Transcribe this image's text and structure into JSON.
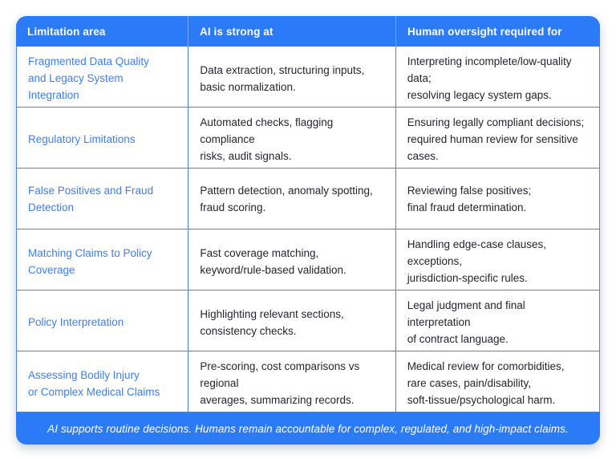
{
  "chart_data": {
    "type": "table",
    "title": "",
    "columns": [
      "Limitation area",
      "AI is strong at",
      "Human oversight required for"
    ],
    "rows": [
      [
        "Fragmented Data Quality\nand Legacy System Integration",
        "Data extraction, structuring inputs,\nbasic normalization.",
        "Interpreting incomplete/low-quality data;\nresolving legacy system gaps."
      ],
      [
        "Regulatory Limitations",
        "Automated checks, flagging compliance\nrisks, audit signals.",
        "Ensuring legally compliant decisions;\nrequired human review for sensitive cases."
      ],
      [
        "False Positives and Fraud\nDetection",
        "Pattern detection, anomaly spotting,\nfraud scoring.",
        "Reviewing false positives;\nfinal fraud determination."
      ],
      [
        "Matching Claims to Policy\nCoverage",
        "Fast coverage matching,\nkeyword/rule-based validation.",
        "Handling edge-case clauses, exceptions,\njurisdiction-specific rules."
      ],
      [
        "Policy Interpretation",
        "Highlighting relevant sections,\nconsistency checks.",
        "Legal judgment and final interpretation\nof contract language."
      ],
      [
        "Assessing Bodily Injury\nor Complex Medical Claims",
        "Pre-scoring, cost comparisons vs regional\naverages, summarizing records.",
        "Medical review for comorbidities,\nrare cases, pain/disability,\nsoft-tissue/psychological harm."
      ]
    ],
    "footnote": "AI supports routine decisions. Humans remain accountable for complex, regulated, and high-impact claims.",
    "layout_hints": {
      "grid": "on",
      "header_position": "top",
      "footnote_position": "bottom"
    }
  },
  "colors": {
    "header_bg": "#2b7af7",
    "footer_bg": "#2b7af7",
    "limitation_text": "#3d7ef0",
    "body_text": "#23252f",
    "grid_border": "#4d84d9",
    "header_text": "#ffffff"
  }
}
